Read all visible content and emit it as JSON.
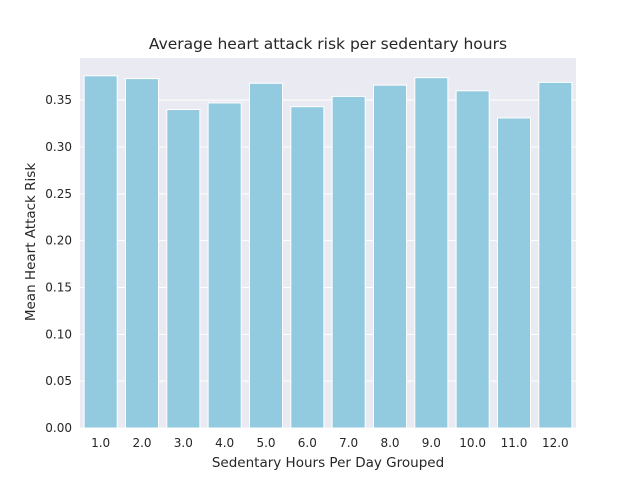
{
  "chart_data": {
    "type": "bar",
    "title": "Average heart attack risk per sedentary hours",
    "xlabel": "Sedentary Hours Per Day Grouped",
    "ylabel": "Mean Heart Attack Risk",
    "categories": [
      "1.0",
      "2.0",
      "3.0",
      "4.0",
      "5.0",
      "6.0",
      "7.0",
      "8.0",
      "9.0",
      "10.0",
      "11.0",
      "12.0"
    ],
    "values": [
      0.376,
      0.373,
      0.34,
      0.347,
      0.368,
      0.343,
      0.354,
      0.366,
      0.374,
      0.36,
      0.331,
      0.369
    ],
    "ylim": [
      0,
      0.395
    ],
    "yticks": [
      0.0,
      0.05,
      0.1,
      0.15,
      0.2,
      0.25,
      0.3,
      0.35
    ],
    "ytick_labels": [
      "0.00",
      "0.05",
      "0.10",
      "0.15",
      "0.20",
      "0.25",
      "0.30",
      "0.35"
    ],
    "grid": true,
    "legend": "none",
    "colors": {
      "bar": "#92CAE0",
      "plot_background": "#EAEAF2",
      "grid": "#FFFFFF",
      "text": "#262626"
    }
  }
}
